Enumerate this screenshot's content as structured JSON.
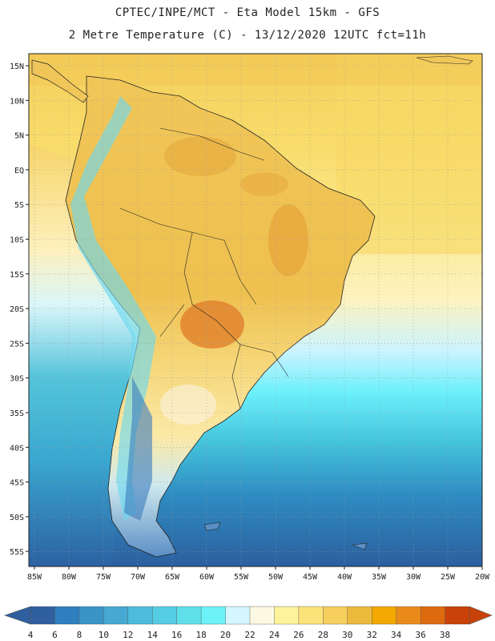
{
  "header": {
    "line1": "CPTEC/INPE/MCT -  Eta Model 15km - GFS",
    "line2": "2 Metre Temperature (C) - 13/12/2020 12UTC fct=11h"
  },
  "map": {
    "region": "South America",
    "lat_ticks": [
      "15N",
      "10N",
      "5N",
      "EQ",
      "5S",
      "10S",
      "15S",
      "20S",
      "25S",
      "30S",
      "35S",
      "40S",
      "45S",
      "50S",
      "55S"
    ],
    "lon_ticks": [
      "85W",
      "80W",
      "75W",
      "70W",
      "65W",
      "60W",
      "55W",
      "50W",
      "45W",
      "40W",
      "35W",
      "30W",
      "25W",
      "20W"
    ],
    "grid": true,
    "ocean_gradient_note_colors": {
      "tropical_ocean": "#f7dc6a",
      "subtropical_ocean": "#fdf4c3",
      "mid_ocean": "#6cf0ff",
      "cool_ocean": "#3cc6e0",
      "cold_ocean": "#2e6fb0"
    }
  },
  "colorbar": {
    "labels": [
      "4",
      "6",
      "8",
      "10",
      "12",
      "14",
      "16",
      "18",
      "20",
      "22",
      "24",
      "26",
      "28",
      "30",
      "32",
      "34",
      "36",
      "38"
    ],
    "colors": [
      "#2f5f9e",
      "#2f7fbf",
      "#3a94c6",
      "#45a9d2",
      "#4dbcdc",
      "#55cde3",
      "#5fdfe9",
      "#6cf2f7",
      "#d4f6ff",
      "#fdf8e1",
      "#fdf39c",
      "#fbe37a",
      "#f6cf5e",
      "#ecba3c",
      "#f2a800",
      "#ea8a1a",
      "#de6a0f",
      "#c9420a"
    ]
  }
}
